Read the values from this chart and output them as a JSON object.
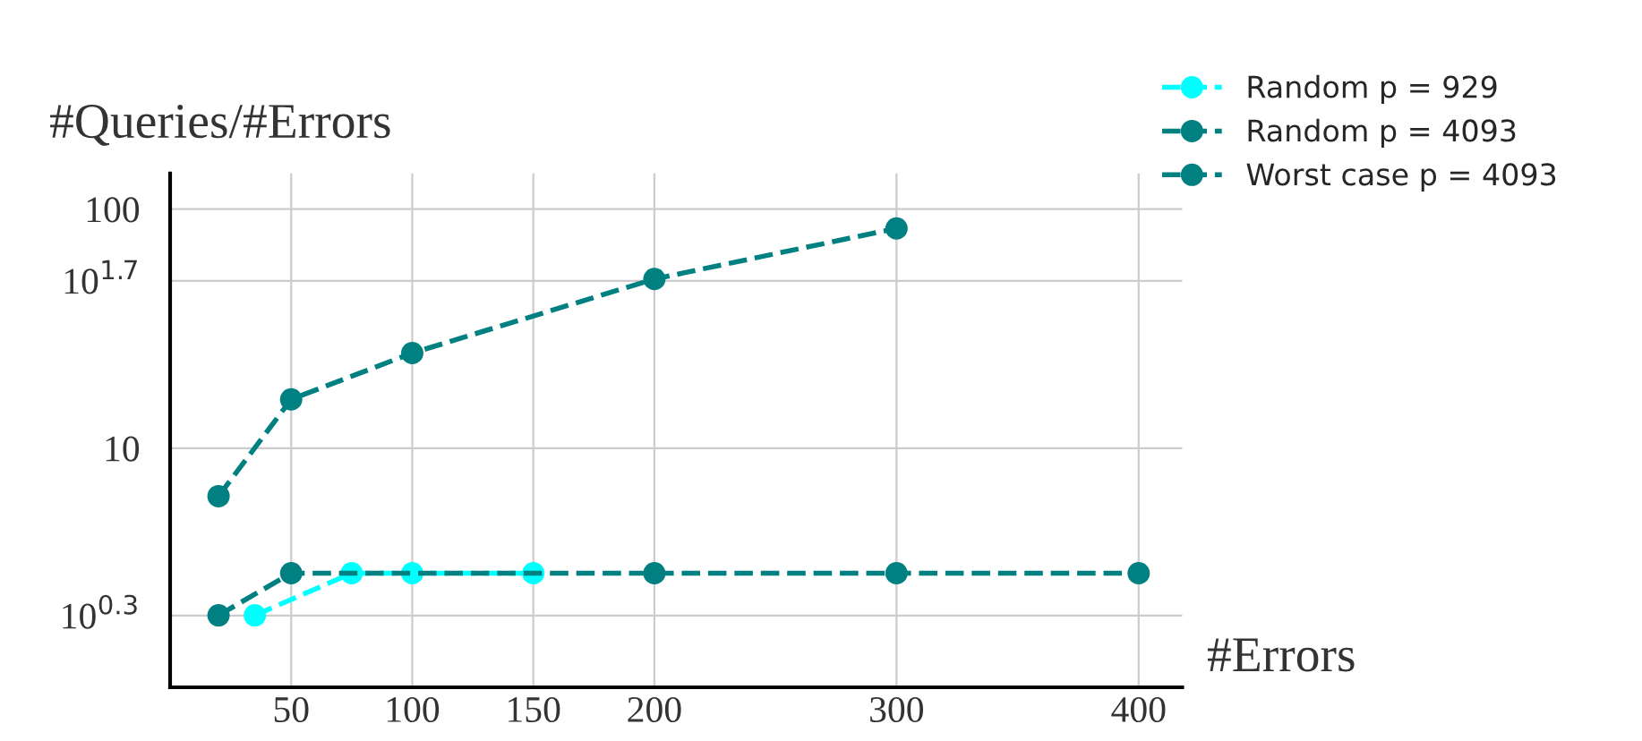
{
  "chart_data": {
    "type": "line",
    "ylabel": "#Queries/#Errors",
    "xlabel": "#Errors",
    "log": "y",
    "grid": true,
    "legend": "top right",
    "marker": "circle",
    "line_style": "dashed",
    "xlim": [
      0,
      418
    ],
    "ylim": [
      1,
      141
    ],
    "xticks": [
      50,
      100,
      150,
      200,
      300,
      400
    ],
    "yticks": [
      {
        "value": 1.995,
        "label": "10$^{0.3}$"
      },
      {
        "value": 10,
        "label": "10"
      },
      {
        "value": 50.12,
        "label": "10$^{1.7}$"
      },
      {
        "value": 100,
        "label": "100"
      }
    ],
    "series": [
      {
        "name": "Random p = 929",
        "color": "#00ffff",
        "x": [
          35,
          75,
          100,
          150
        ],
        "values": [
          2,
          3,
          3,
          3
        ]
      },
      {
        "name": "Random p = 4093",
        "color": "#008080",
        "x": [
          20,
          50,
          200,
          300,
          400
        ],
        "values": [
          2,
          3,
          3,
          3,
          3
        ]
      },
      {
        "name": "Worst case p = 4093",
        "color": "#008080",
        "x": [
          20,
          50,
          100,
          200,
          300
        ],
        "values": [
          6.3,
          16,
          25,
          51,
          83
        ]
      }
    ]
  }
}
